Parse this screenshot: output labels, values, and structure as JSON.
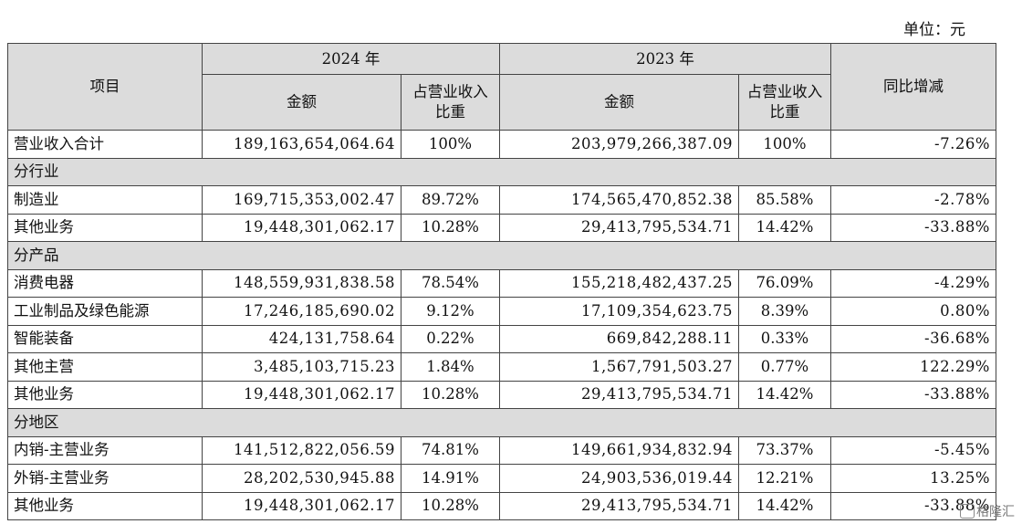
{
  "unit_label": "单位：元",
  "header": {
    "item": "项目",
    "year_2024": "2024 年",
    "year_2023": "2023 年",
    "amount": "金额",
    "share": "占营业收入比重",
    "yoy": "同比增减"
  },
  "rows": [
    {
      "type": "data",
      "label": "营业收入合计",
      "amt24": "189,163,654,064.64",
      "pct24": "100%",
      "amt23": "203,979,266,387.09",
      "pct23": "100%",
      "yoy": "-7.26%"
    },
    {
      "type": "group",
      "label": "分行业"
    },
    {
      "type": "data",
      "label": "制造业",
      "amt24": "169,715,353,002.47",
      "pct24": "89.72%",
      "amt23": "174,565,470,852.38",
      "pct23": "85.58%",
      "yoy": "-2.78%"
    },
    {
      "type": "data",
      "label": "其他业务",
      "amt24": "19,448,301,062.17",
      "pct24": "10.28%",
      "amt23": "29,413,795,534.71",
      "pct23": "14.42%",
      "yoy": "-33.88%"
    },
    {
      "type": "group",
      "label": "分产品"
    },
    {
      "type": "data",
      "label": "消费电器",
      "amt24": "148,559,931,838.58",
      "pct24": "78.54%",
      "amt23": "155,218,482,437.25",
      "pct23": "76.09%",
      "yoy": "-4.29%"
    },
    {
      "type": "data",
      "label": "工业制品及绿色能源",
      "amt24": "17,246,185,690.02",
      "pct24": "9.12%",
      "amt23": "17,109,354,623.75",
      "pct23": "8.39%",
      "yoy": "0.80%"
    },
    {
      "type": "data",
      "label": "智能装备",
      "amt24": "424,131,758.64",
      "pct24": "0.22%",
      "amt23": "669,842,288.11",
      "pct23": "0.33%",
      "yoy": "-36.68%"
    },
    {
      "type": "data",
      "label": "其他主营",
      "amt24": "3,485,103,715.23",
      "pct24": "1.84%",
      "amt23": "1,567,791,503.27",
      "pct23": "0.77%",
      "yoy": "122.29%"
    },
    {
      "type": "data",
      "label": "其他业务",
      "amt24": "19,448,301,062.17",
      "pct24": "10.28%",
      "amt23": "29,413,795,534.71",
      "pct23": "14.42%",
      "yoy": "-33.88%"
    },
    {
      "type": "group",
      "label": "分地区"
    },
    {
      "type": "data",
      "label": "内销-主营业务",
      "amt24": "141,512,822,056.59",
      "pct24": "74.81%",
      "amt23": "149,661,934,832.94",
      "pct23": "73.37%",
      "yoy": "-5.45%"
    },
    {
      "type": "data",
      "label": "外销-主营业务",
      "amt24": "28,202,530,945.88",
      "pct24": "14.91%",
      "amt23": "24,903,536,019.44",
      "pct23": "12.21%",
      "yoy": "13.25%"
    },
    {
      "type": "data",
      "label": "其他业务",
      "amt24": "19,448,301,062.17",
      "pct24": "10.28%",
      "amt23": "29,413,795,534.71",
      "pct23": "14.42%",
      "yoy": "-33.88%"
    }
  ],
  "watermark": "格隆汇"
}
